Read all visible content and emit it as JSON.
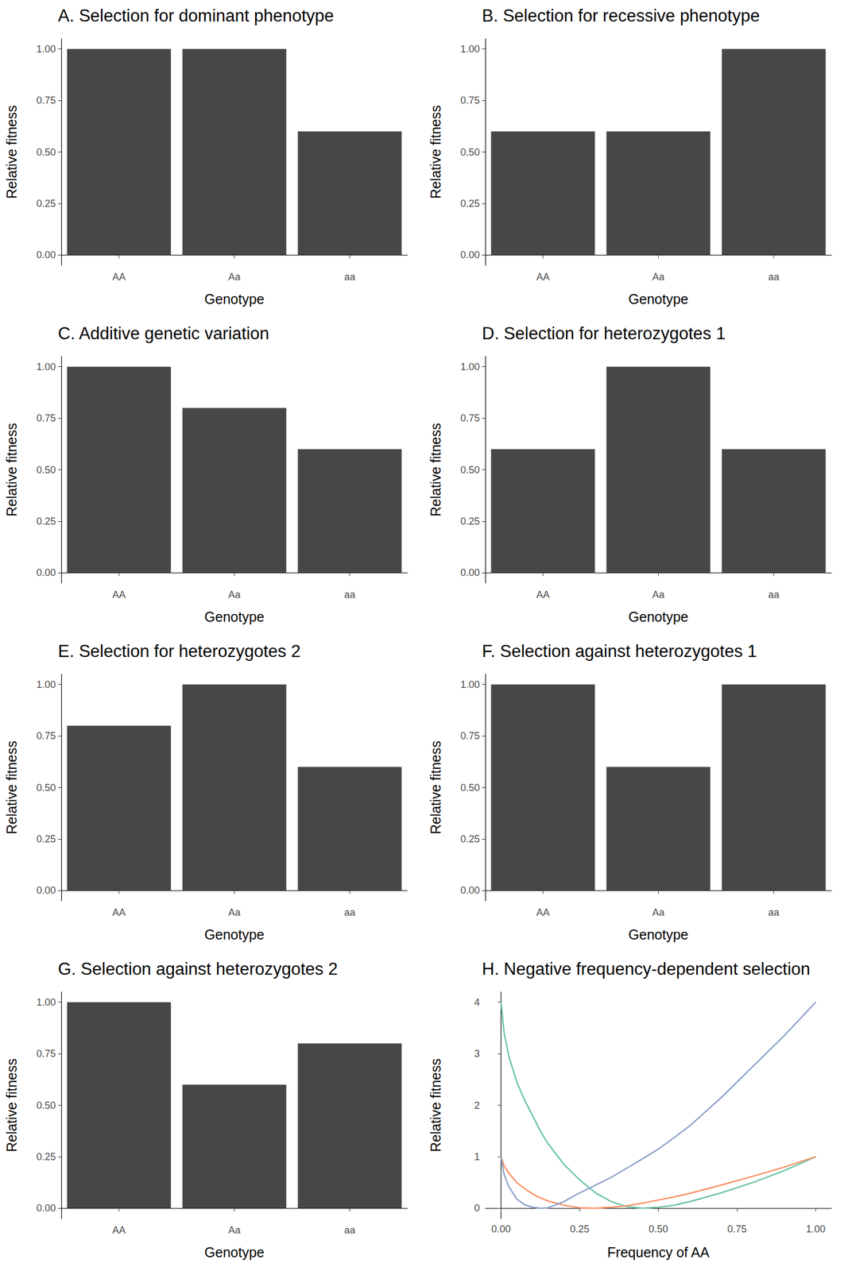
{
  "chart_data": [
    {
      "type": "bar",
      "title": "A. Selection for dominant phenotype",
      "xlabel": "Genotype",
      "ylabel": "Relative fitness",
      "categories": [
        "AA",
        "Aa",
        "aa"
      ],
      "values": [
        1.0,
        1.0,
        0.6
      ],
      "color": "#474747",
      "ylim": [
        -0.05,
        1.05
      ],
      "yticks": [
        {
          "value": 0,
          "label": "0.00"
        },
        {
          "value": 0.25,
          "label": "0.25"
        },
        {
          "value": 0.5,
          "label": "0.50"
        },
        {
          "value": 0.75,
          "label": "0.75"
        },
        {
          "value": 1,
          "label": "1.00"
        }
      ]
    },
    {
      "type": "bar",
      "title": "B. Selection for recessive phenotype",
      "xlabel": "Genotype",
      "ylabel": "Relative fitness",
      "categories": [
        "AA",
        "Aa",
        "aa"
      ],
      "values": [
        0.6,
        0.6,
        1.0
      ],
      "color": "#474747",
      "ylim": [
        -0.05,
        1.05
      ],
      "yticks": [
        {
          "value": 0,
          "label": "0.00"
        },
        {
          "value": 0.25,
          "label": "0.25"
        },
        {
          "value": 0.5,
          "label": "0.50"
        },
        {
          "value": 0.75,
          "label": "0.75"
        },
        {
          "value": 1,
          "label": "1.00"
        }
      ]
    },
    {
      "type": "bar",
      "title": "C. Additive genetic variation",
      "xlabel": "Genotype",
      "ylabel": "Relative fitness",
      "categories": [
        "AA",
        "Aa",
        "aa"
      ],
      "values": [
        1.0,
        0.8,
        0.6
      ],
      "color": "#474747",
      "ylim": [
        -0.05,
        1.05
      ],
      "yticks": [
        {
          "value": 0,
          "label": "0.00"
        },
        {
          "value": 0.25,
          "label": "0.25"
        },
        {
          "value": 0.5,
          "label": "0.50"
        },
        {
          "value": 0.75,
          "label": "0.75"
        },
        {
          "value": 1,
          "label": "1.00"
        }
      ]
    },
    {
      "type": "bar",
      "title": "D. Selection for heterozygotes 1",
      "xlabel": "Genotype",
      "ylabel": "Relative fitness",
      "categories": [
        "AA",
        "Aa",
        "aa"
      ],
      "values": [
        0.6,
        1.0,
        0.6
      ],
      "color": "#474747",
      "ylim": [
        -0.05,
        1.05
      ],
      "yticks": [
        {
          "value": 0,
          "label": "0.00"
        },
        {
          "value": 0.25,
          "label": "0.25"
        },
        {
          "value": 0.5,
          "label": "0.50"
        },
        {
          "value": 0.75,
          "label": "0.75"
        },
        {
          "value": 1,
          "label": "1.00"
        }
      ]
    },
    {
      "type": "bar",
      "title": "E. Selection for heterozygotes 2",
      "xlabel": "Genotype",
      "ylabel": "Relative fitness",
      "categories": [
        "AA",
        "Aa",
        "aa"
      ],
      "values": [
        0.8,
        1.0,
        0.6
      ],
      "color": "#474747",
      "ylim": [
        -0.05,
        1.05
      ],
      "yticks": [
        {
          "value": 0,
          "label": "0.00"
        },
        {
          "value": 0.25,
          "label": "0.25"
        },
        {
          "value": 0.5,
          "label": "0.50"
        },
        {
          "value": 0.75,
          "label": "0.75"
        },
        {
          "value": 1,
          "label": "1.00"
        }
      ]
    },
    {
      "type": "bar",
      "title": "F. Selection against heterozygotes 1",
      "xlabel": "Genotype",
      "ylabel": "Relative fitness",
      "categories": [
        "AA",
        "Aa",
        "aa"
      ],
      "values": [
        1.0,
        0.6,
        1.0
      ],
      "color": "#474747",
      "ylim": [
        -0.05,
        1.05
      ],
      "yticks": [
        {
          "value": 0,
          "label": "0.00"
        },
        {
          "value": 0.25,
          "label": "0.25"
        },
        {
          "value": 0.5,
          "label": "0.50"
        },
        {
          "value": 0.75,
          "label": "0.75"
        },
        {
          "value": 1,
          "label": "1.00"
        }
      ]
    },
    {
      "type": "bar",
      "title": "G. Selection against heterozygotes 2",
      "xlabel": "Genotype",
      "ylabel": "Relative fitness",
      "categories": [
        "AA",
        "Aa",
        "aa"
      ],
      "values": [
        1.0,
        0.6,
        0.8
      ],
      "color": "#474747",
      "ylim": [
        -0.05,
        1.05
      ],
      "yticks": [
        {
          "value": 0,
          "label": "0.00"
        },
        {
          "value": 0.25,
          "label": "0.25"
        },
        {
          "value": 0.5,
          "label": "0.50"
        },
        {
          "value": 0.75,
          "label": "0.75"
        },
        {
          "value": 1,
          "label": "1.00"
        }
      ]
    },
    {
      "type": "line",
      "title": "H. Negative frequency-dependent selection",
      "xlabel": "Frequency of AA",
      "ylabel": "Relative fitness",
      "x": [
        0,
        0.01,
        0.025,
        0.05,
        0.075,
        0.1,
        0.125,
        0.15,
        0.2,
        0.25,
        0.3,
        0.35,
        0.4,
        0.45,
        0.5,
        0.55,
        0.6,
        0.7,
        0.8,
        0.9,
        1.0
      ],
      "series": [
        {
          "color": "#66c2a5",
          "values": [
            4,
            3.4,
            2.95,
            2.45,
            2.1,
            1.8,
            1.5,
            1.25,
            0.85,
            0.55,
            0.3,
            0.13,
            0.03,
            0,
            0.02,
            0.06,
            0.13,
            0.3,
            0.5,
            0.73,
            1
          ]
        },
        {
          "color": "#fc8d62",
          "values": [
            1,
            0.82,
            0.68,
            0.5,
            0.38,
            0.28,
            0.2,
            0.14,
            0.06,
            0.01,
            0,
            0.02,
            0.05,
            0.1,
            0.16,
            0.22,
            0.29,
            0.45,
            0.62,
            0.8,
            1
          ]
        },
        {
          "color": "#8da0cb",
          "values": [
            1,
            0.65,
            0.42,
            0.18,
            0.07,
            0.02,
            0,
            0.01,
            0.13,
            0.3,
            0.45,
            0.6,
            0.78,
            0.96,
            1.15,
            1.37,
            1.6,
            2.15,
            2.75,
            3.35,
            4
          ]
        }
      ],
      "xlim": [
        -0.05,
        1.05
      ],
      "xticks": [
        {
          "value": 0,
          "label": "0.00"
        },
        {
          "value": 0.25,
          "label": "0.25"
        },
        {
          "value": 0.5,
          "label": "0.50"
        },
        {
          "value": 0.75,
          "label": "0.75"
        },
        {
          "value": 1,
          "label": "1.00"
        }
      ],
      "ylim": [
        -0.2,
        4.2
      ],
      "yticks": [
        0,
        1,
        2,
        3,
        4
      ]
    }
  ]
}
